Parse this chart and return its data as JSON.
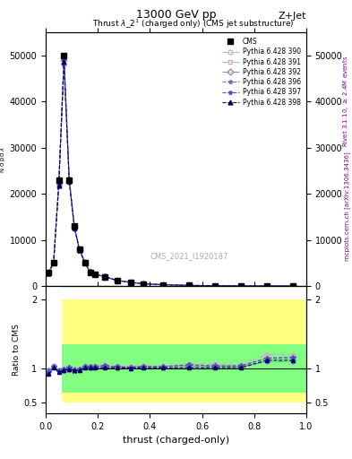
{
  "title": "13000 GeV pp",
  "top_right_label": "Z+Jet",
  "plot_title": "Thrust $\\lambda$_2$^1$ (charged only) (CMS jet substructure)",
  "xlabel": "thrust (charged-only)",
  "ylabel_main": "$\\frac{1}{\\mathrm{N}} / \\mathrm{\\frac{d\\,N}{d\\,p\\,mathrm{d}\\,\\lambda}}$",
  "ylabel_ratio": "Ratio to CMS",
  "right_label_top": "Rivet 3.1.10, $\\geq$ 2.4M events",
  "right_label_bottom": "mcplots.cern.ch [arXiv:1306.3436]",
  "cms_label": "CMS_2021_I1920187",
  "cms_color": "#000000",
  "background_color": "#ffffff",
  "legend_entries": [
    "CMS",
    "Pythia 6.428 390",
    "Pythia 6.428 391",
    "Pythia 6.428 392",
    "Pythia 6.428 396",
    "Pythia 6.428 397",
    "Pythia 6.428 398"
  ],
  "line_colors": [
    "#000000",
    "#d4aac8",
    "#d4aac8",
    "#9090c0",
    "#7070c0",
    "#5050c0",
    "#000060"
  ],
  "line_styles": [
    "-",
    "-.",
    "-.",
    "-.",
    "--",
    "--",
    "--"
  ],
  "marker_styles": [
    "s",
    "o",
    "s",
    "D",
    "*",
    "*",
    "^"
  ],
  "main_xlim": [
    0,
    1
  ],
  "main_ylim": [
    0,
    55000
  ],
  "ratio_xlim": [
    0,
    1
  ],
  "ratio_ylim": [
    0.35,
    2.2
  ],
  "ratio_yticks": [
    0.5,
    1.0,
    2.0
  ],
  "main_yticks": [
    0,
    10000,
    20000,
    30000,
    40000,
    50000
  ],
  "main_ytick_labels": [
    "0",
    "10000",
    "20000",
    "30000",
    "40000",
    "50000"
  ],
  "thrust_bins": [
    0.0,
    0.02,
    0.04,
    0.06,
    0.08,
    0.1,
    0.12,
    0.14,
    0.16,
    0.18,
    0.2,
    0.25,
    0.3,
    0.35,
    0.4,
    0.5,
    0.6,
    0.7,
    0.8,
    0.9,
    1.0
  ],
  "cms_data": [
    3000,
    5000,
    23000,
    50000,
    23000,
    13000,
    8000,
    5000,
    3000,
    2500,
    2000,
    1200,
    800,
    500,
    300,
    150,
    80,
    40,
    10,
    5
  ],
  "pythia_390": [
    2800,
    5200,
    22000,
    48000,
    22500,
    12500,
    7800,
    5200,
    3100,
    2600,
    2100,
    1250,
    820,
    520,
    310,
    160,
    85,
    42,
    12,
    6
  ],
  "pythia_391": [
    2800,
    5200,
    22000,
    48000,
    22500,
    12500,
    7800,
    5200,
    3100,
    2600,
    2100,
    1250,
    820,
    520,
    310,
    160,
    85,
    42,
    12,
    6
  ],
  "pythia_392": [
    2900,
    5100,
    22500,
    49000,
    22800,
    12800,
    7900,
    5100,
    3050,
    2550,
    2050,
    1220,
    810,
    510,
    305,
    155,
    82,
    41,
    11,
    5.5
  ],
  "pythia_396": [
    2850,
    5150,
    22200,
    49500,
    23200,
    12700,
    7850,
    5150,
    3080,
    2580,
    2080,
    1230,
    815,
    515,
    308,
    158,
    83,
    41.5,
    11.5,
    5.8
  ],
  "pythia_397": [
    2850,
    5150,
    22200,
    49500,
    23200,
    12700,
    7850,
    5150,
    3080,
    2580,
    2080,
    1230,
    815,
    515,
    308,
    158,
    83,
    41.5,
    11.5,
    5.8
  ],
  "pythia_398": [
    2750,
    5050,
    21800,
    48500,
    22800,
    12600,
    7750,
    5050,
    3020,
    2520,
    2020,
    1210,
    805,
    505,
    302,
    152,
    81,
    40.5,
    11.2,
    5.6
  ],
  "ratio_390": [
    0.93,
    1.04,
    0.96,
    0.96,
    0.98,
    0.96,
    0.975,
    1.04,
    1.03,
    1.04,
    1.05,
    1.04,
    1.025,
    1.04,
    1.033,
    1.067,
    1.0625,
    1.05,
    1.2,
    1.2
  ],
  "ratio_391": [
    0.93,
    1.04,
    0.96,
    0.96,
    0.98,
    0.96,
    0.975,
    1.04,
    1.03,
    1.04,
    1.05,
    1.04,
    1.025,
    1.04,
    1.033,
    1.067,
    1.0625,
    1.05,
    1.2,
    1.2
  ],
  "ratio_392": [
    0.97,
    1.02,
    0.978,
    0.98,
    0.991,
    0.985,
    0.9875,
    1.02,
    1.017,
    1.02,
    1.025,
    1.017,
    1.0125,
    1.02,
    1.017,
    1.033,
    1.025,
    1.025,
    1.1,
    1.1
  ],
  "ratio_396": [
    0.95,
    1.03,
    0.965,
    0.99,
    1.009,
    0.977,
    0.98125,
    1.03,
    1.027,
    1.032,
    1.04,
    1.025,
    1.019,
    1.03,
    1.027,
    1.053,
    1.0375,
    1.0375,
    1.15,
    1.16
  ],
  "ratio_397": [
    0.95,
    1.03,
    0.965,
    0.99,
    1.009,
    0.977,
    0.98125,
    1.03,
    1.027,
    1.032,
    1.04,
    1.025,
    1.019,
    1.03,
    1.027,
    1.053,
    1.0375,
    1.0375,
    1.15,
    1.16
  ],
  "ratio_398": [
    0.917,
    1.01,
    0.948,
    0.97,
    0.991,
    0.969,
    0.96875,
    1.01,
    1.007,
    1.008,
    1.01,
    1.008,
    1.00625,
    1.01,
    1.007,
    1.013,
    1.0125,
    1.0125,
    1.12,
    1.12
  ],
  "yellow_band_lo": [
    0.5,
    0.5,
    0.5,
    0.5,
    0.5,
    0.5,
    0.5,
    0.5,
    0.5,
    0.5,
    0.5,
    0.5,
    0.5,
    0.5,
    0.5,
    0.5,
    0.5,
    0.5,
    0.5,
    0.5
  ],
  "yellow_band_hi": [
    2.0,
    2.0,
    2.0,
    2.0,
    2.0,
    2.0,
    2.0,
    2.0,
    2.0,
    2.0,
    2.0,
    2.0,
    2.0,
    2.0,
    2.0,
    2.0,
    2.0,
    2.0,
    2.0,
    2.0
  ],
  "green_band_lo": [
    0.65,
    0.65,
    0.65,
    0.65,
    0.65,
    0.65,
    0.65,
    0.65,
    0.65,
    0.65,
    0.65,
    0.65,
    0.65,
    0.65,
    0.65,
    0.65,
    0.65,
    0.65,
    0.65,
    0.65
  ],
  "green_band_hi": [
    1.35,
    1.35,
    1.35,
    1.35,
    1.35,
    1.35,
    1.35,
    1.35,
    1.35,
    1.35,
    1.35,
    1.35,
    1.35,
    1.35,
    1.35,
    1.35,
    1.35,
    1.35,
    1.35,
    1.35
  ],
  "yellow_color": "#ffff80",
  "green_color": "#80ff80",
  "ratio_line_color": "#000000"
}
